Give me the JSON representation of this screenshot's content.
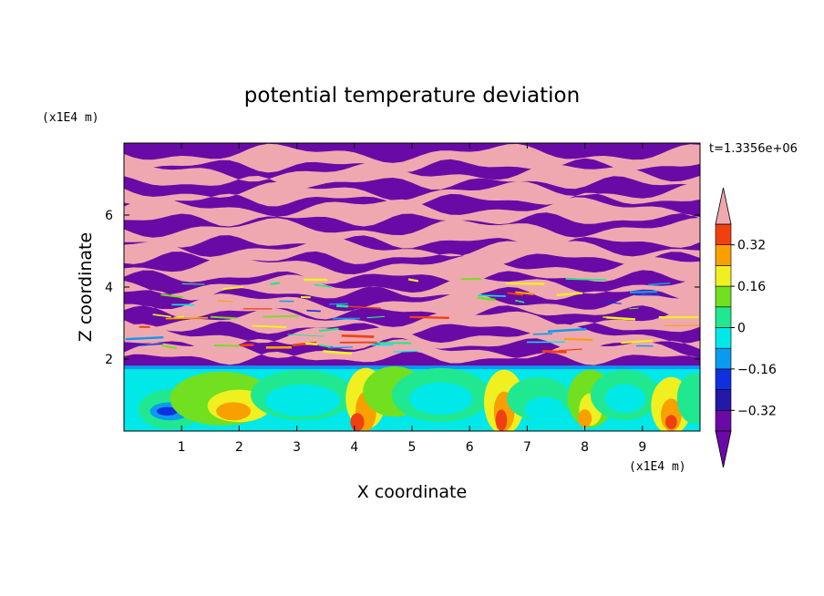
{
  "chart_data": {
    "type": "heatmap",
    "title": "potential temperature deviation",
    "time_label": "t=1.3356e+06",
    "xlabel": "X coordinate",
    "ylabel": "Z coordinate",
    "x_unit": "(x1E4 m)",
    "y_unit": "(x1E4 m)",
    "xlim": [
      0,
      10
    ],
    "ylim": [
      0,
      8
    ],
    "x_ticks": [
      "1",
      "2",
      "3",
      "4",
      "5",
      "6",
      "7",
      "8",
      "9"
    ],
    "y_ticks": [
      "2",
      "4",
      "6"
    ],
    "colorbar": {
      "labels": [
        "0.32",
        "0.16",
        "0",
        "−0.16",
        "−0.32"
      ],
      "label_values": [
        0.32,
        0.16,
        0,
        -0.16,
        -0.32
      ],
      "levels": [
        -0.4,
        -0.32,
        -0.24,
        -0.16,
        -0.08,
        0,
        0.08,
        0.16,
        0.24,
        0.32,
        0.4
      ],
      "colors": [
        "#6a0aa6",
        "#2318a8",
        "#1030e0",
        "#0a9af0",
        "#00e8e8",
        "#20e890",
        "#70e020",
        "#f0f020",
        "#f8a000",
        "#f04010",
        "#f0a8b0"
      ],
      "extend": "both"
    },
    "field_description": "pink (above +0.40) and purple (below -0.40) horizontal bands above z=2; convective plumes of intermediate values below z=2"
  }
}
